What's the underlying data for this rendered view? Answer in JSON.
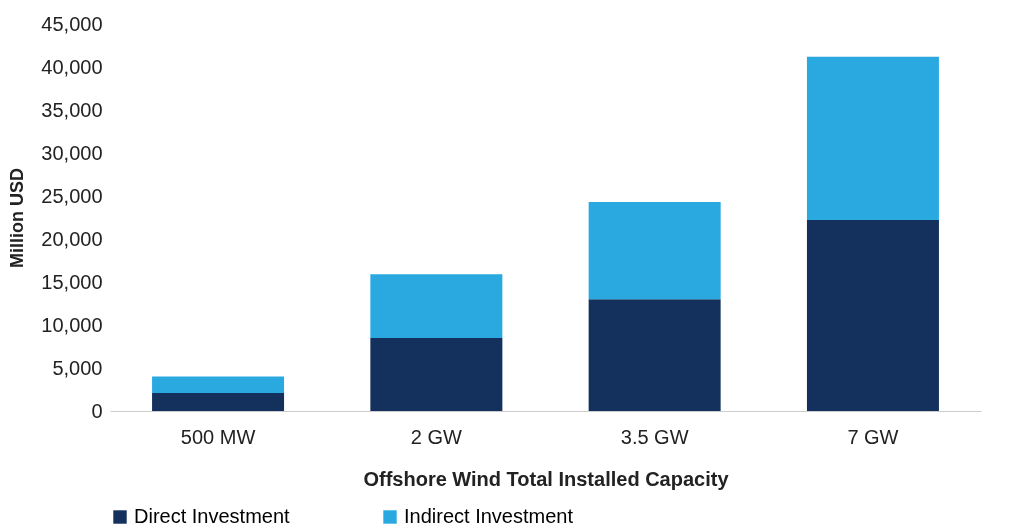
{
  "chart_data": {
    "type": "bar",
    "stacked": true,
    "xlabel": "Offshore Wind Total Installed Capacity",
    "ylabel": "Million USD",
    "categories": [
      "500 MW",
      "2 GW",
      "3.5 GW",
      "7 GW"
    ],
    "series": [
      {
        "name": "Direct Investment",
        "color": "#13315c",
        "values": [
          2100,
          8500,
          13000,
          22200
        ]
      },
      {
        "name": "Indirect Investment",
        "color": "#2aa9e0",
        "values": [
          1900,
          7400,
          11300,
          19000
        ]
      }
    ],
    "ylim": [
      0,
      45000
    ],
    "yticks": [
      0,
      {
        "value": 5000,
        "label": "5,000"
      },
      {
        "value": 10000,
        "label": "10,000"
      },
      {
        "value": 15000,
        "label": "15,000"
      },
      {
        "value": 20000,
        "label": "20,000"
      },
      {
        "value": 25000,
        "label": "25,000"
      },
      {
        "value": 30000,
        "label": "30,000"
      },
      {
        "value": 35000,
        "label": "35,000"
      },
      {
        "value": 40000,
        "label": "40,000"
      },
      {
        "value": 45000,
        "label": "45,000"
      }
    ],
    "grid": false,
    "legend": "bottom"
  }
}
